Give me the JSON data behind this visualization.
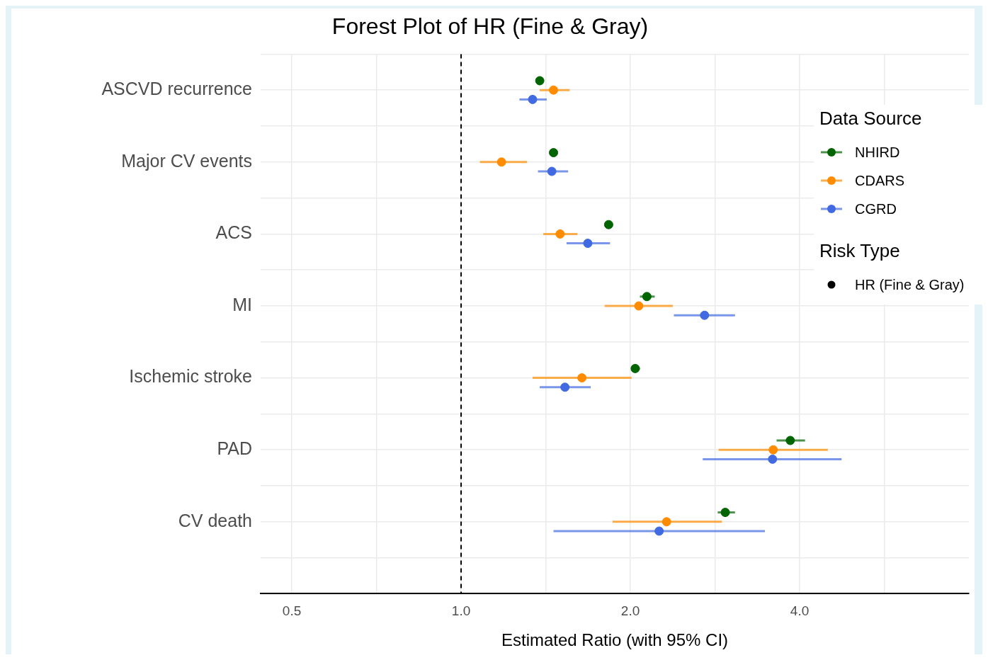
{
  "chart_data": {
    "type": "scatter",
    "title": "Forest Plot of HR (Fine & Gray)",
    "xlabel": "Estimated Ratio (with 95% CI)",
    "legend_title": "Data Source",
    "annotations": [
      "Risk Type",
      "HR (Fine & Gray)"
    ],
    "categories": [
      "ASCVD recurrence",
      "Major CV events",
      "ACS",
      "MI",
      "Ischemic stroke",
      "PAD",
      "CV death"
    ],
    "series": [
      {
        "name": "NHIRD",
        "color": "#006400",
        "values": [
          1.38,
          1.46,
          1.83,
          2.14,
          2.04,
          3.85,
          2.95
        ],
        "errors": [
          null,
          null,
          [
            1.8,
            1.86
          ],
          [
            2.08,
            2.21
          ],
          [
            2.01,
            2.08
          ],
          [
            3.64,
            4.09
          ],
          [
            2.86,
            3.07
          ]
        ]
      },
      {
        "name": "CDARS",
        "color": "#ff8c00",
        "values": [
          1.46,
          1.18,
          1.5,
          2.07,
          1.64,
          3.59,
          2.32
        ],
        "errors": [
          [
            1.38,
            1.56
          ],
          [
            1.08,
            1.31
          ],
          [
            1.4,
            1.61
          ],
          [
            1.8,
            2.38
          ],
          [
            1.34,
            2.01
          ],
          [
            2.87,
            4.49
          ],
          [
            1.86,
            2.91
          ]
        ]
      },
      {
        "name": "CGRD",
        "color": "#4169e1",
        "values": [
          1.34,
          1.45,
          1.68,
          2.71,
          1.53,
          3.58,
          2.25
        ],
        "errors": [
          [
            1.27,
            1.42
          ],
          [
            1.37,
            1.55
          ],
          [
            1.54,
            1.84
          ],
          [
            2.39,
            3.07
          ],
          [
            1.38,
            1.7
          ],
          [
            2.69,
            4.75
          ],
          [
            1.46,
            3.47
          ]
        ]
      }
    ],
    "orientation": "horizontal",
    "log": "x",
    "xlim": [
      0.44,
      8
    ],
    "xticks": [
      {
        "value": 0.5,
        "label": "0.5"
      },
      {
        "value": 0.707,
        "label": null
      },
      {
        "value": 1,
        "label": "1.0"
      },
      {
        "value": 1.414,
        "label": null
      },
      {
        "value": 2,
        "label": "2.0"
      },
      {
        "value": 2.828,
        "label": null
      },
      {
        "value": 4,
        "label": "4.0"
      },
      {
        "value": 5.657,
        "label": null
      }
    ],
    "ref_lines": [
      {
        "axis": "x",
        "value": 1,
        "color": "#000000",
        "line_style": "dashed"
      }
    ],
    "grid": true,
    "legend": "top right",
    "marker": "circle"
  }
}
